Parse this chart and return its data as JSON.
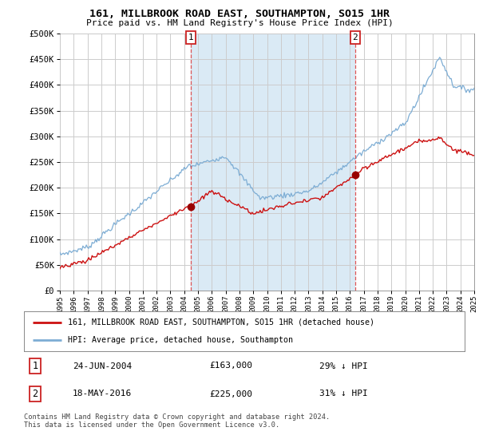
{
  "title": "161, MILLBROOK ROAD EAST, SOUTHAMPTON, SO15 1HR",
  "subtitle": "Price paid vs. HM Land Registry's House Price Index (HPI)",
  "legend_line1": "161, MILLBROOK ROAD EAST, SOUTHAMPTON, SO15 1HR (detached house)",
  "legend_line2": "HPI: Average price, detached house, Southampton",
  "annotation1_date": "24-JUN-2004",
  "annotation1_price": "£163,000",
  "annotation1_hpi": "29% ↓ HPI",
  "annotation2_date": "18-MAY-2016",
  "annotation2_price": "£225,000",
  "annotation2_hpi": "31% ↓ HPI",
  "footer": "Contains HM Land Registry data © Crown copyright and database right 2024.\nThis data is licensed under the Open Government Licence v3.0.",
  "hpi_color": "#7dadd4",
  "hpi_fill_color": "#daeaf5",
  "price_color": "#cc1111",
  "marker_color": "#990000",
  "background_color": "#ffffff",
  "grid_color": "#cccccc",
  "anno_line_color": "#dd4444",
  "ylim": [
    0,
    500000
  ],
  "yticks": [
    0,
    50000,
    100000,
    150000,
    200000,
    250000,
    300000,
    350000,
    400000,
    450000,
    500000
  ],
  "xmin": 1995,
  "xmax": 2025,
  "anno1_x": 2004.47,
  "anno1_y": 163000,
  "anno2_x": 2016.38,
  "anno2_y": 225000
}
